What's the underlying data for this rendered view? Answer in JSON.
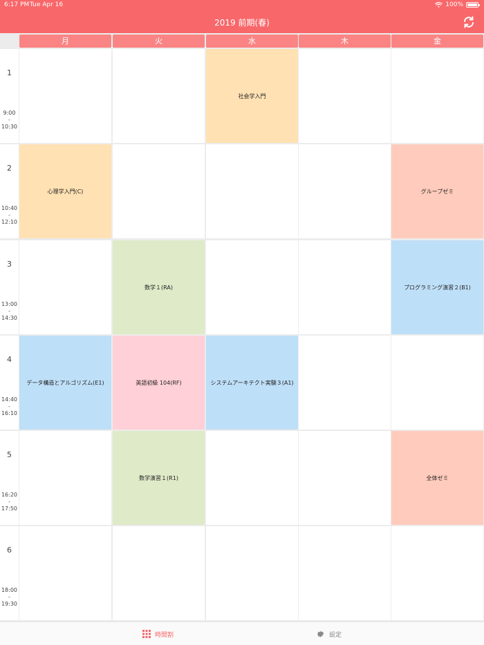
{
  "status": {
    "time": "6:17 PM",
    "date": "Tue Apr 16",
    "battery": "100%"
  },
  "header": {
    "title": "2019 前期(春)",
    "refresh_icon": "refresh-icon"
  },
  "days": [
    "月",
    "火",
    "水",
    "木",
    "金"
  ],
  "periods": [
    {
      "num": "1",
      "start": "9:00",
      "sep": "-",
      "end": "10:30"
    },
    {
      "num": "2",
      "start": "10:40",
      "sep": "-",
      "end": "12:10"
    },
    {
      "num": "3",
      "start": "13:00",
      "sep": "-",
      "end": "14:30"
    },
    {
      "num": "4",
      "start": "14:40",
      "sep": "-",
      "end": "16:10"
    },
    {
      "num": "5",
      "start": "16:20",
      "sep": "-",
      "end": "17:50"
    },
    {
      "num": "6",
      "start": "18:00",
      "sep": "-",
      "end": "19:30"
    }
  ],
  "courses": [
    {
      "day": 2,
      "period": 0,
      "name": "社会学入門",
      "color": "#ffe1b3"
    },
    {
      "day": 0,
      "period": 1,
      "name": "心理学入門(C)",
      "color": "#ffe1b3"
    },
    {
      "day": 4,
      "period": 1,
      "name": "グループゼミ",
      "color": "#ffcbbc"
    },
    {
      "day": 1,
      "period": 2,
      "name": "数学１(RA)",
      "color": "#dfeac8"
    },
    {
      "day": 4,
      "period": 2,
      "name": "プログラミング演習２(B1)",
      "color": "#bedff8"
    },
    {
      "day": 0,
      "period": 3,
      "name": "データ構造とアルゴリズム(E1)",
      "color": "#bedff8"
    },
    {
      "day": 1,
      "period": 3,
      "name": "英語初級 104(RF)",
      "color": "#ffd0d7"
    },
    {
      "day": 2,
      "period": 3,
      "name": "システムアーキテクト実験３(A1)",
      "color": "#bedff8"
    },
    {
      "day": 1,
      "period": 4,
      "name": "数学演習１(R1)",
      "color": "#dfeac8"
    },
    {
      "day": 4,
      "period": 4,
      "name": "全体ゼミ",
      "color": "#ffcbbc"
    }
  ],
  "tabbar": {
    "timetable": {
      "label": "時間割",
      "icon": "grid-icon"
    },
    "settings": {
      "label": "設定",
      "icon": "gear-icon"
    }
  }
}
